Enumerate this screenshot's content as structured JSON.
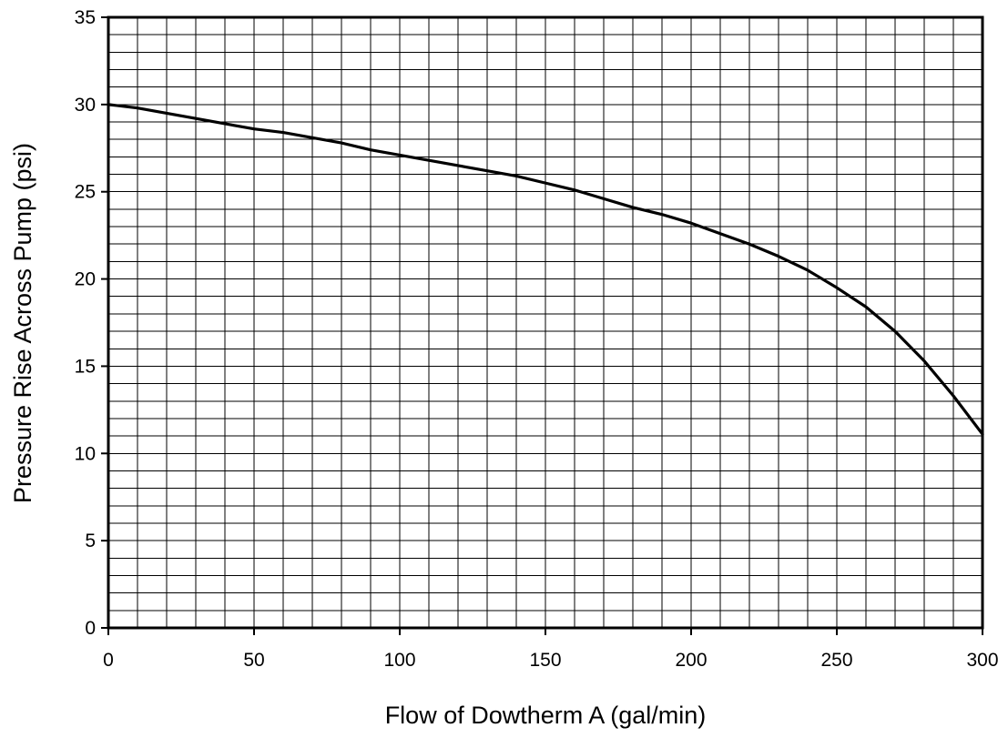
{
  "chart_data": {
    "type": "line",
    "title": "",
    "xlabel": "Flow of Dowtherm A (gal/min)",
    "ylabel": "Pressure Rise Across Pump (psi)",
    "xlim": [
      0,
      300
    ],
    "ylim": [
      0,
      35
    ],
    "x_ticks": [
      0,
      50,
      100,
      150,
      200,
      250,
      300
    ],
    "y_ticks": [
      0,
      5,
      10,
      15,
      20,
      25,
      30,
      35
    ],
    "x_tick_labels": [
      "0",
      "50",
      "100",
      "150",
      "200",
      "250",
      "300"
    ],
    "y_tick_labels": [
      "0",
      "5",
      "10",
      "15",
      "20",
      "25",
      "30",
      "35"
    ],
    "grid": true,
    "grid_minor_x_step": 10,
    "grid_minor_y_step": 1,
    "legend": "none",
    "line_color": "#000000",
    "series": [
      {
        "x": [
          0,
          10,
          20,
          30,
          40,
          50,
          60,
          70,
          80,
          90,
          100,
          110,
          120,
          130,
          140,
          150,
          160,
          170,
          180,
          190,
          200,
          210,
          220,
          230,
          240,
          250,
          260,
          270,
          280,
          290,
          300
        ],
        "y": [
          30.0,
          29.8,
          29.5,
          29.2,
          28.9,
          28.6,
          28.4,
          28.1,
          27.8,
          27.4,
          27.1,
          26.8,
          26.5,
          26.2,
          25.9,
          25.5,
          25.1,
          24.6,
          24.1,
          23.7,
          23.2,
          22.6,
          22.0,
          21.3,
          20.5,
          19.5,
          18.4,
          17.0,
          15.3,
          13.3,
          11.1
        ]
      }
    ]
  }
}
